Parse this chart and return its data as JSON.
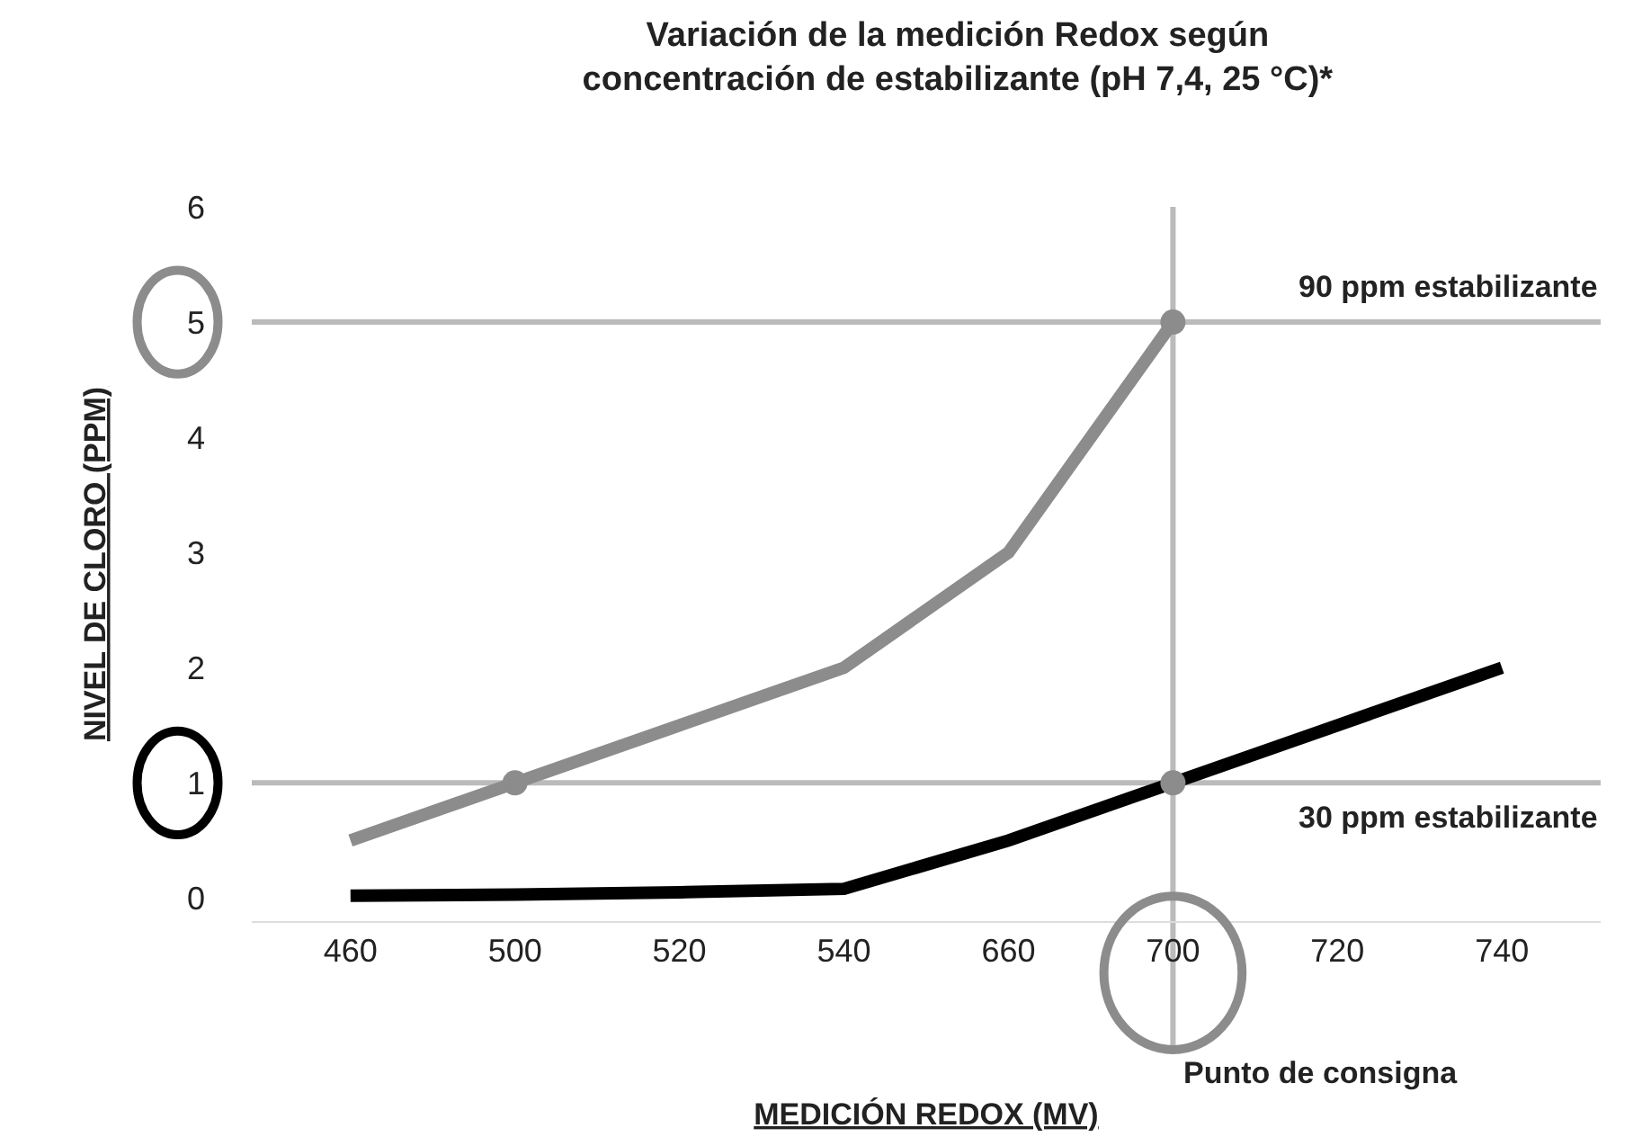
{
  "chart_data": {
    "type": "line",
    "title": "Variación de la medición Redox según\nconcentración de estabilizante (pH 7,4, 25 °C)*",
    "xlabel": "MEDICIÓN REDOX (MV)",
    "ylabel": "NIVEL DE CLORO (PPM)",
    "categories": [
      "460",
      "500",
      "520",
      "540",
      "660",
      "700",
      "720",
      "740"
    ],
    "series": [
      {
        "color": "#8c8c8c",
        "values": [
          0.5,
          1,
          1.5,
          2,
          3,
          5,
          null,
          null
        ]
      },
      {
        "color": "#000000",
        "values": [
          0.02,
          0.03,
          0.05,
          0.08,
          0.5,
          1,
          1.5,
          2
        ]
      },
      {
        "type": "scatter",
        "color": "#8c8c8c",
        "x": [
          "500",
          "700",
          "700"
        ],
        "values": [
          1,
          5,
          1
        ]
      }
    ],
    "ylim": [
      -0.2,
      6
    ],
    "yticks": [
      0,
      1,
      2,
      3,
      4,
      5,
      6
    ],
    "grid": false,
    "line_style": "solid",
    "ref_lines": [
      {
        "axis": "y",
        "value": 5,
        "label": "90 ppm estabilizante",
        "color": "#bbbbbb"
      },
      {
        "axis": "y",
        "value": 1,
        "label": "30 ppm estabilizante",
        "color": "#bbbbbb"
      },
      {
        "axis": "x",
        "value": "700",
        "label": "Punto de consigna",
        "color": "#bbbbbb"
      }
    ]
  }
}
